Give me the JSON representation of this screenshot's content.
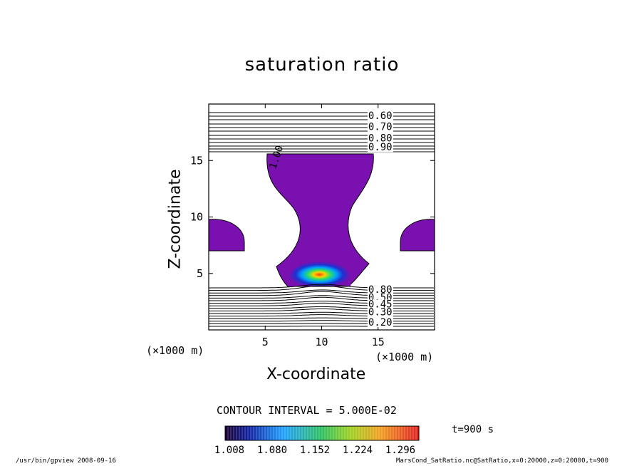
{
  "title": "saturation ratio",
  "footer": {
    "left": "/usr/bin/gpview  2008-09-16",
    "right": "MarsCond_SatRatio.nc@SatRatio,x=0:20000,z=0:20000,t=900"
  },
  "contour_interval": "CONTOUR INTERVAL = 5.000E-02",
  "time_label": "t=900  s",
  "colors": {
    "shade": "#7a10b0",
    "axis": "#000000"
  },
  "chart_data": {
    "type": "heatmap",
    "title": "saturation ratio",
    "xlabel": "X-coordinate",
    "ylabel": "Z-coordinate",
    "x_unit": "(×1000 m)",
    "z_unit": "(×1000 m)",
    "xlim": [
      0,
      20
    ],
    "ylim": [
      0,
      20
    ],
    "xticks": [
      5,
      10,
      15
    ],
    "yticks": [
      5,
      10,
      15
    ],
    "contour_labels": [
      {
        "text": "0.60",
        "x": 14,
        "z": 19.0
      },
      {
        "text": "0.70",
        "x": 14,
        "z": 18.0
      },
      {
        "text": "0.80",
        "x": 14,
        "z": 17.0
      },
      {
        "text": "0.90",
        "x": 14,
        "z": 16.2
      },
      {
        "text": "1.00",
        "x": 5.8,
        "z": 14.5
      },
      {
        "text": "0.80",
        "x": 14,
        "z": 3.6
      },
      {
        "text": "0.50",
        "x": 14,
        "z": 2.9
      },
      {
        "text": "0.45",
        "x": 14,
        "z": 2.3
      },
      {
        "text": "0.30",
        "x": 14,
        "z": 1.6
      },
      {
        "text": "0.20",
        "x": 14,
        "z": 0.7
      }
    ],
    "colorbar": {
      "ticks": [
        "1.008",
        "1.080",
        "1.152",
        "1.224",
        "1.296"
      ],
      "range": [
        1.008,
        1.296
      ]
    }
  }
}
